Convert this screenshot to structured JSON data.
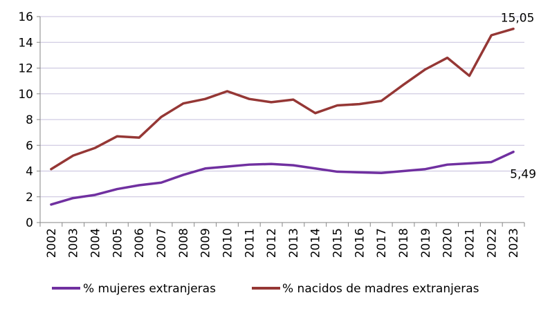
{
  "chart_data": {
    "type": "line",
    "categories": [
      "2002",
      "2003",
      "2004",
      "2005",
      "2006",
      "2007",
      "2008",
      "2009",
      "2010",
      "2011",
      "2012",
      "2013",
      "2014",
      "2015",
      "2016",
      "2017",
      "2018",
      "2019",
      "2020",
      "2021",
      "2022",
      "2023"
    ],
    "series": [
      {
        "name": "% mujeres extranjeras",
        "color": "#7030a0",
        "values": [
          1.4,
          1.9,
          2.15,
          2.6,
          2.9,
          3.1,
          3.7,
          4.2,
          4.35,
          4.5,
          4.55,
          4.45,
          4.2,
          3.95,
          3.9,
          3.85,
          4.0,
          4.15,
          4.5,
          4.6,
          4.7,
          5.49
        ]
      },
      {
        "name": "% nacidos de madres extranjeras",
        "color": "#953735",
        "values": [
          4.15,
          5.2,
          5.8,
          6.7,
          6.6,
          8.2,
          9.25,
          9.6,
          10.2,
          9.6,
          9.35,
          9.55,
          8.5,
          9.1,
          9.2,
          9.45,
          10.7,
          11.9,
          12.8,
          11.4,
          14.55,
          15.05
        ]
      }
    ],
    "data_labels": [
      "5,49",
      "15,05"
    ],
    "yticks": [
      "0",
      "2",
      "4",
      "6",
      "8",
      "10",
      "12",
      "14",
      "16"
    ],
    "ylim": [
      0,
      16
    ],
    "grid": true,
    "grid_color": "#c5bfdc",
    "legend_placement": "bottom",
    "title": "",
    "xlabel": "",
    "ylabel": ""
  }
}
